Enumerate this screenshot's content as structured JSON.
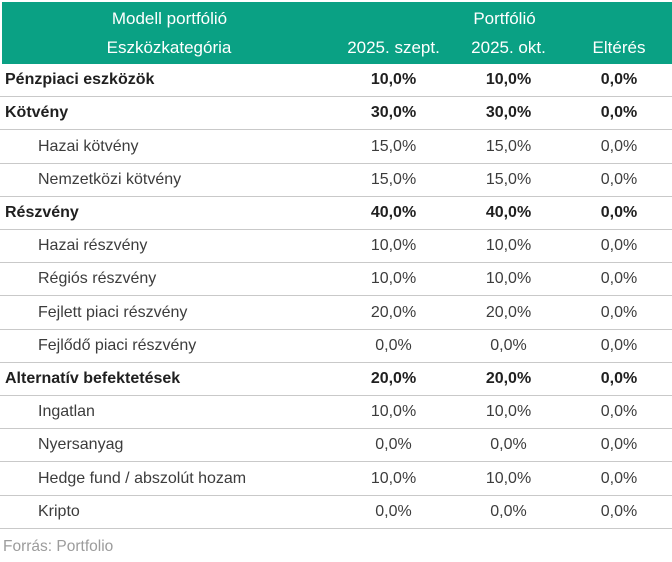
{
  "colors": {
    "header_bg": "#0aa184",
    "header_text": "#ffffff",
    "bold_text": "#1f1f1f",
    "normal_text": "#3c3c3c",
    "row_border": "#c9c9c9",
    "source_text": "#9c9c9c"
  },
  "table": {
    "header": {
      "group_left": "Modell portfólió",
      "group_right": "Portfólió",
      "columns": [
        "Eszközkategória",
        "2025. szept.",
        "2025. okt.",
        "Eltérés"
      ]
    },
    "rows": [
      {
        "label": "Pénzpiaci eszközök",
        "sept": "10,0%",
        "okt": "10,0%",
        "diff": "0,0%",
        "bold": true,
        "indent": false
      },
      {
        "label": "Kötvény",
        "sept": "30,0%",
        "okt": "30,0%",
        "diff": "0,0%",
        "bold": true,
        "indent": false
      },
      {
        "label": "Hazai kötvény",
        "sept": "15,0%",
        "okt": "15,0%",
        "diff": "0,0%",
        "bold": false,
        "indent": true
      },
      {
        "label": "Nemzetközi kötvény",
        "sept": "15,0%",
        "okt": "15,0%",
        "diff": "0,0%",
        "bold": false,
        "indent": true
      },
      {
        "label": "Részvény",
        "sept": "40,0%",
        "okt": "40,0%",
        "diff": "0,0%",
        "bold": true,
        "indent": false
      },
      {
        "label": "Hazai részvény",
        "sept": "10,0%",
        "okt": "10,0%",
        "diff": "0,0%",
        "bold": false,
        "indent": true
      },
      {
        "label": "Régiós részvény",
        "sept": "10,0%",
        "okt": "10,0%",
        "diff": "0,0%",
        "bold": false,
        "indent": true
      },
      {
        "label": "Fejlett piaci részvény",
        "sept": "20,0%",
        "okt": "20,0%",
        "diff": "0,0%",
        "bold": false,
        "indent": true
      },
      {
        "label": "Fejlődő piaci részvény",
        "sept": "0,0%",
        "okt": "0,0%",
        "diff": "0,0%",
        "bold": false,
        "indent": true
      },
      {
        "label": "Alternatív befektetések",
        "sept": "20,0%",
        "okt": "20,0%",
        "diff": "0,0%",
        "bold": true,
        "indent": false
      },
      {
        "label": "Ingatlan",
        "sept": "10,0%",
        "okt": "10,0%",
        "diff": "0,0%",
        "bold": false,
        "indent": true
      },
      {
        "label": "Nyersanyag",
        "sept": "0,0%",
        "okt": "0,0%",
        "diff": "0,0%",
        "bold": false,
        "indent": true
      },
      {
        "label": "Hedge fund / abszolút hozam",
        "sept": "10,0%",
        "okt": "10,0%",
        "diff": "0,0%",
        "bold": false,
        "indent": true
      },
      {
        "label": "Kripto",
        "sept": "0,0%",
        "okt": "0,0%",
        "diff": "0,0%",
        "bold": false,
        "indent": true
      }
    ],
    "source": "Forrás: Portfolio"
  },
  "chart_data": {
    "type": "table",
    "title": "Modell portfólió / Portfólió",
    "columns": [
      "Eszközkategória",
      "2025. szept.",
      "2025. okt.",
      "Eltérés"
    ],
    "categories": [
      "Pénzpiaci eszközök",
      "Kötvény",
      "Hazai kötvény",
      "Nemzetközi kötvény",
      "Részvény",
      "Hazai részvény",
      "Régiós részvény",
      "Fejlett piaci részvény",
      "Fejlődő piaci részvény",
      "Alternatív befektetések",
      "Ingatlan",
      "Nyersanyag",
      "Hedge fund / abszolút hozam",
      "Kripto"
    ],
    "series": [
      {
        "name": "2025. szept.",
        "unit": "%",
        "values": [
          10.0,
          30.0,
          15.0,
          15.0,
          40.0,
          10.0,
          10.0,
          20.0,
          0.0,
          20.0,
          10.0,
          0.0,
          10.0,
          0.0
        ]
      },
      {
        "name": "2025. okt.",
        "unit": "%",
        "values": [
          10.0,
          30.0,
          15.0,
          15.0,
          40.0,
          10.0,
          10.0,
          20.0,
          0.0,
          20.0,
          10.0,
          0.0,
          10.0,
          0.0
        ]
      },
      {
        "name": "Eltérés",
        "unit": "%",
        "values": [
          0.0,
          0.0,
          0.0,
          0.0,
          0.0,
          0.0,
          0.0,
          0.0,
          0.0,
          0.0,
          0.0,
          0.0,
          0.0,
          0.0
        ]
      }
    ],
    "section_rows": [
      "Pénzpiaci eszközök",
      "Kötvény",
      "Részvény",
      "Alternatív befektetések"
    ],
    "source": "Forrás: Portfolio"
  }
}
